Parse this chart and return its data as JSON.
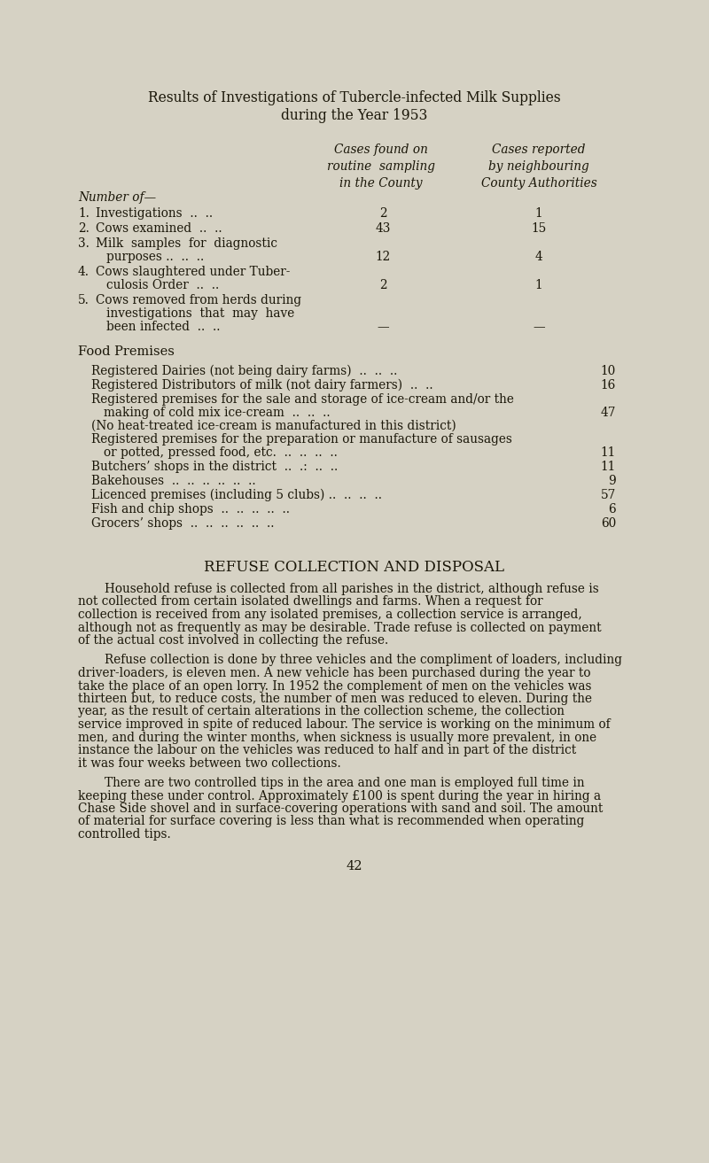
{
  "bg_color": "#d6d2c4",
  "text_color": "#1a1608",
  "title_line1": "Results of Investigations of Tubercle-infected Milk Supplies",
  "title_line2": "during the Year 1953",
  "col_header1": "Cases found on\nroutine  sampling\nin the County",
  "col_header2": "Cases reported\nby neighbouring\nCounty Authorities",
  "number_of_label": "Number of—",
  "page_number": "42",
  "refuse_header": "REFUSE COLLECTION AND DISPOSAL",
  "paragraph1": "Household refuse is collected from all parishes in the district, although refuse is not collected from certain isolated dwellings and farms.  When a request for collection is received from any isolated premises, a collection service is arranged, although not as frequently as may be desirable.  Trade refuse is collected on payment of the actual cost involved in collecting the refuse.",
  "paragraph2": "Refuse collection is done by three vehicles and the compliment of loaders, including driver-loaders, is eleven men.  A new vehicle has been purchased during the year to take the place of an open lorry.  In 1952 the complement of men on the vehicles was thirteen but, to reduce costs, the number of men was reduced to eleven.  During the year, as the result of certain alterations in the collection scheme, the collection service improved in spite of reduced labour.  The service is working on the minimum of men, and during the winter months, when sickness is usually more prevalent, in one instance the labour on the vehicles was reduced to half and in part of the district it was four weeks between two collections.",
  "paragraph3": "There are two controlled tips in the area and one man is employed full time in keeping these under control.  Approximately £100 is spent during the year in hiring a Chase Side shovel and in surface-covering operations with sand and soil.  The amount of material for surface covering is less than what is recommended when operating controlled tips."
}
